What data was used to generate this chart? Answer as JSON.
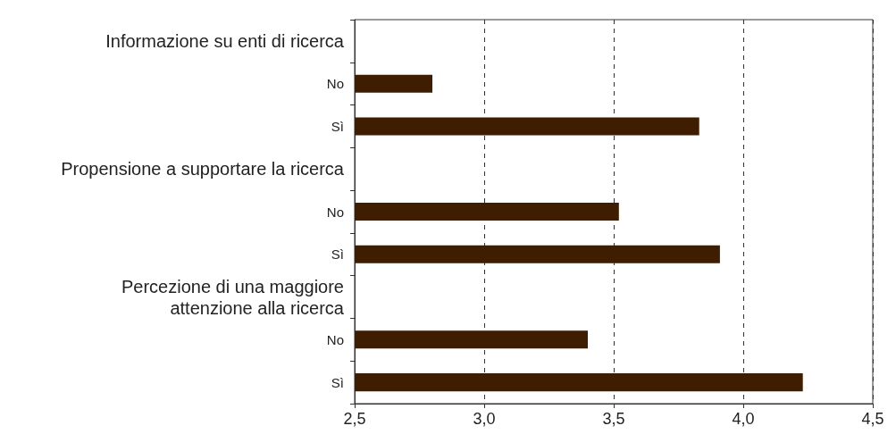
{
  "chart_data": {
    "type": "bar",
    "orientation": "horizontal",
    "categories": [
      "Informazione su enti di ricerca",
      "No",
      "Sì",
      "Propensione a supportare la ricerca",
      "No",
      "Sì",
      "Percezione di una maggiore\nattenzione alla ricerca",
      "No",
      "Sì"
    ],
    "values": [
      null,
      2.8,
      3.83,
      null,
      3.52,
      3.91,
      null,
      3.4,
      4.23
    ],
    "color": "#3f1d00",
    "xlim": [
      2.5,
      4.5
    ],
    "xticks": [
      {
        "value": 2.5,
        "label": "2,5"
      },
      {
        "value": 3.0,
        "label": "3,0"
      },
      {
        "value": 3.5,
        "label": "3,5"
      },
      {
        "value": 4.0,
        "label": "4,0"
      },
      {
        "value": 4.5,
        "label": "4,5"
      }
    ],
    "grid": "x"
  }
}
